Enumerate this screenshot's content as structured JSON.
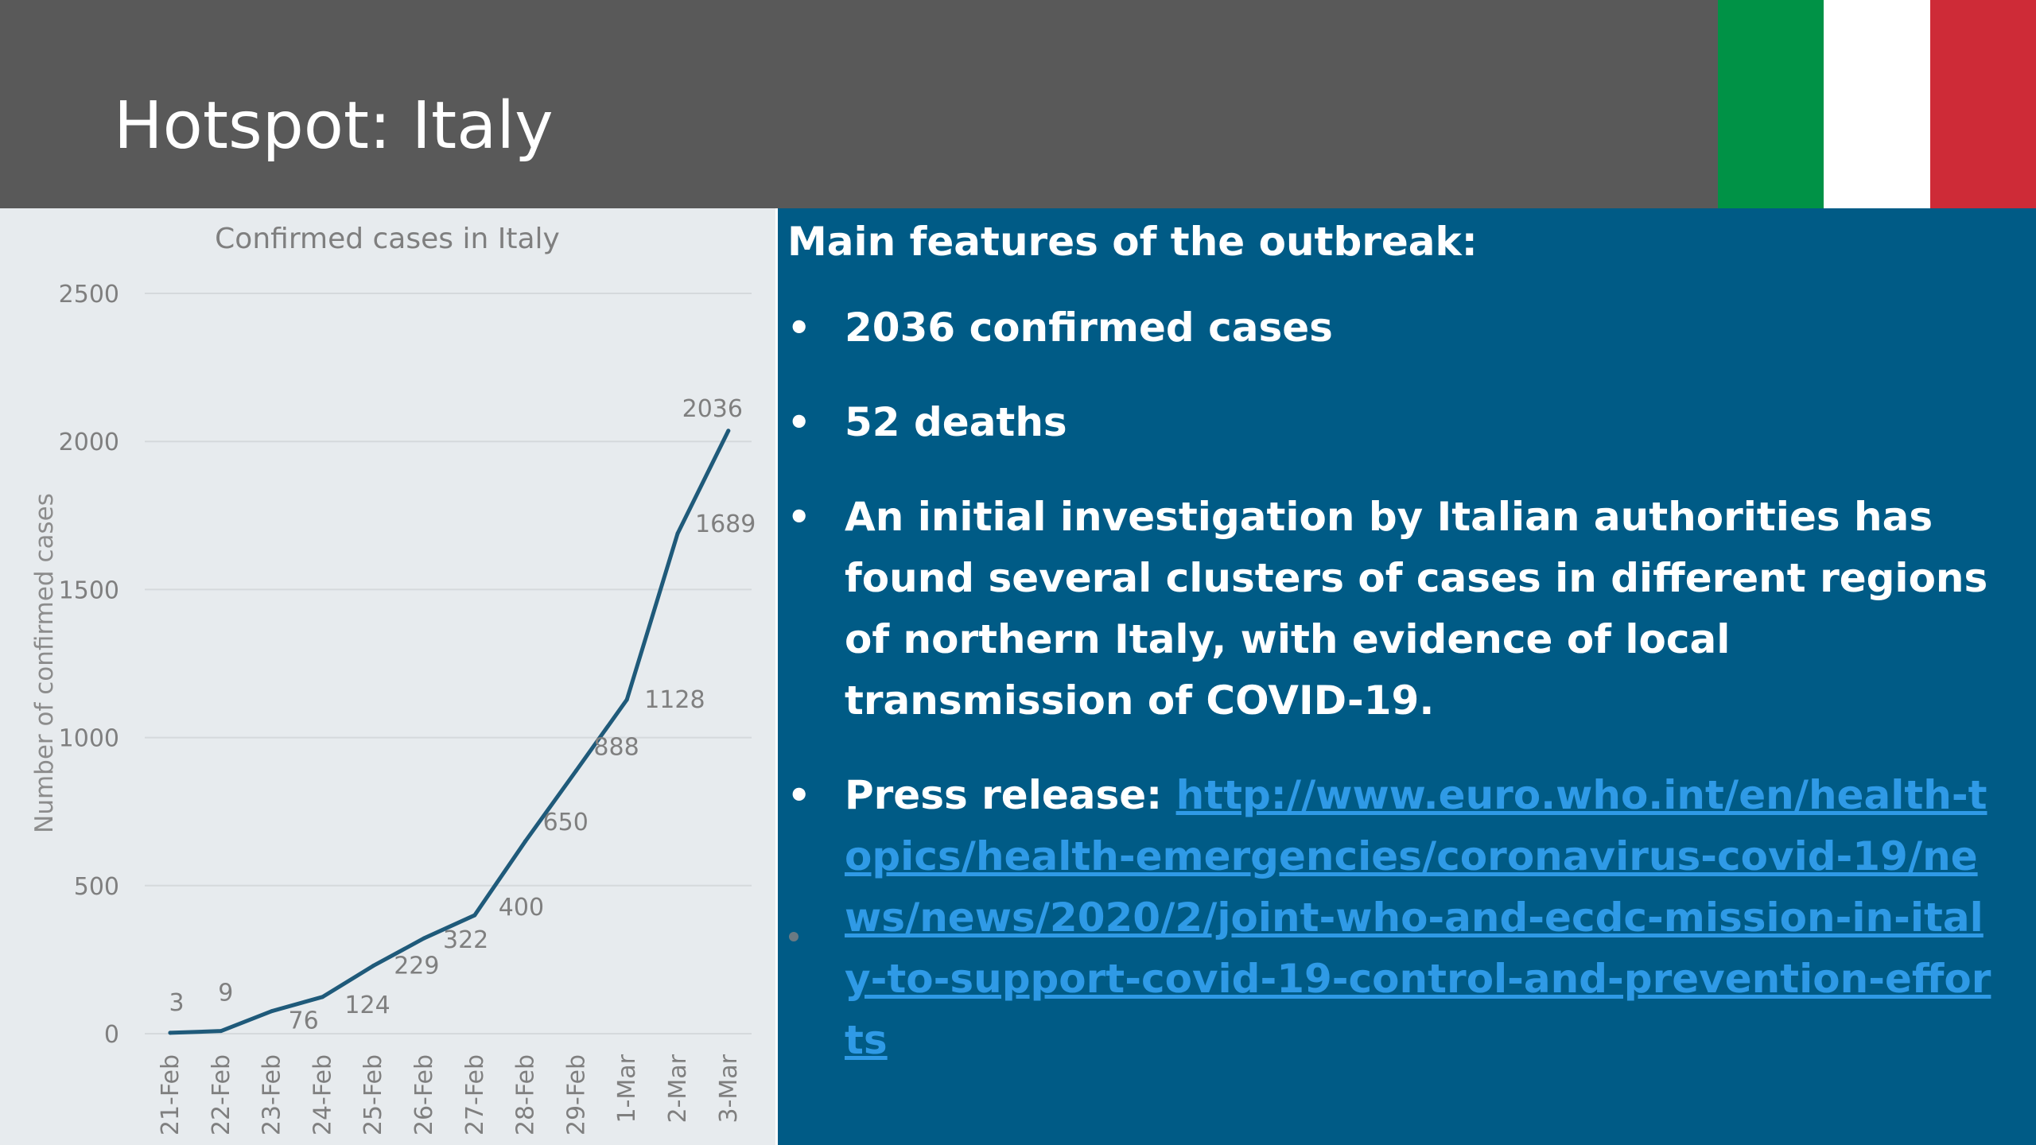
{
  "slide": {
    "title": "Hotspot: Italy",
    "flag_colors": [
      "#009246",
      "#ffffff",
      "#ce2b37"
    ]
  },
  "panel": {
    "heading": "Main features of the outbreak:",
    "bullets": [
      {
        "text": "2036 confirmed cases"
      },
      {
        "text": "52 deaths"
      },
      {
        "text": "An initial investigation by Italian authorities has found several clusters of cases in different regions of northern Italy, with evidence of local transmission of COVID-19."
      },
      {
        "label": "Press release: ",
        "link": "http://www.euro.who.int/en/health-topics/health-emergencies/coronavirus-covid-19/news/news/2020/2/joint-who-and-ecdc-mission-in-italy-to-support-covid-19-control-and-prevention-efforts"
      }
    ]
  },
  "chart_data": {
    "type": "line",
    "title": "Confirmed cases in Italy",
    "xlabel": "",
    "ylabel": "Number of confirmed cases",
    "categories": [
      "21-Feb",
      "22-Feb",
      "23-Feb",
      "24-Feb",
      "25-Feb",
      "26-Feb",
      "27-Feb",
      "28-Feb",
      "29-Feb",
      "1-Mar",
      "2-Mar",
      "3-Mar"
    ],
    "values": [
      3,
      9,
      76,
      124,
      229,
      322,
      400,
      650,
      888,
      1128,
      1689,
      2036
    ],
    "ylim": [
      0,
      2500
    ],
    "yticks": [
      0,
      500,
      1000,
      1500,
      2000,
      2500
    ],
    "grid": true,
    "line_color": "#1f5a7a"
  }
}
